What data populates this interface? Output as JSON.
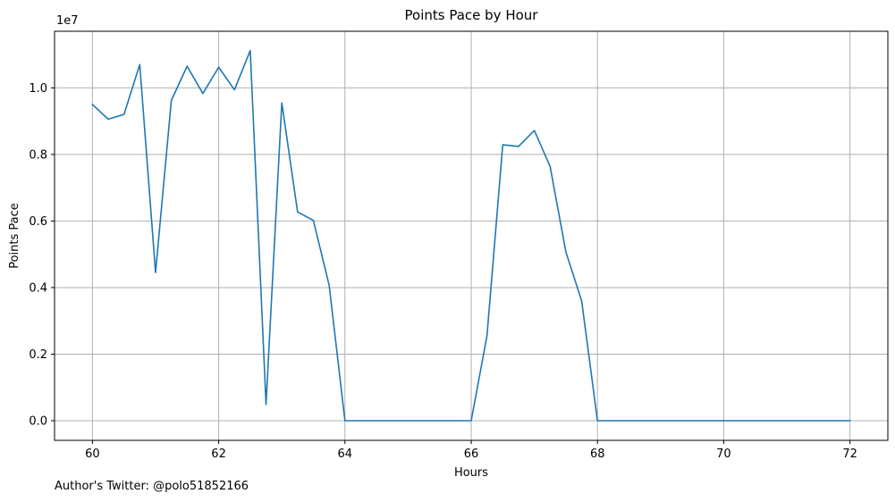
{
  "footer": {
    "text": "Author's Twitter: @polo51852166"
  },
  "chart_data": {
    "type": "line",
    "title": "Points Pace by Hour",
    "xlabel": "Hours",
    "ylabel": "Points Pace",
    "y_offset_label": "1e7",
    "xlim": [
      59.4,
      72.6
    ],
    "ylim": [
      -590000,
      11700000
    ],
    "xticks": [
      60,
      62,
      64,
      66,
      68,
      70,
      72
    ],
    "xtick_labels": [
      "60",
      "62",
      "64",
      "66",
      "68",
      "70",
      "72"
    ],
    "yticks": [
      0,
      2000000,
      4000000,
      6000000,
      8000000,
      10000000
    ],
    "ytick_labels": [
      "0.0",
      "0.2",
      "0.4",
      "0.6",
      "0.8",
      "1.0"
    ],
    "grid": true,
    "legend": "none",
    "colors": {
      "line": "#1f77b4",
      "grid": "#b0b0b0"
    },
    "series": [
      {
        "x": [
          60,
          60.25,
          60.5,
          60.75,
          61,
          61.25,
          61.5,
          61.75,
          62,
          62.25,
          62.5,
          62.75,
          63,
          63.25,
          63.5,
          63.75,
          64,
          64.25,
          64.5,
          64.75,
          65,
          65.25,
          65.5,
          65.75,
          66,
          66.25,
          66.5,
          66.75,
          67,
          67.25,
          67.5,
          67.75,
          68,
          68.25,
          68.5,
          68.75,
          69,
          69.25,
          69.5,
          69.75,
          70,
          70.25,
          70.5,
          70.75,
          71,
          71.25,
          71.5,
          71.75,
          72
        ],
        "values": [
          9500000,
          9060000,
          9200000,
          10700000,
          4450000,
          9620000,
          10650000,
          9830000,
          10620000,
          9940000,
          11120000,
          490000,
          9550000,
          6270000,
          6020000,
          4070000,
          0,
          0,
          0,
          0,
          0,
          0,
          0,
          0,
          0,
          2550000,
          8290000,
          8240000,
          8720000,
          7640000,
          5070000,
          3600000,
          0,
          0,
          0,
          0,
          0,
          0,
          0,
          0,
          0,
          0,
          0,
          0,
          0,
          0,
          0,
          0,
          0
        ]
      }
    ]
  }
}
